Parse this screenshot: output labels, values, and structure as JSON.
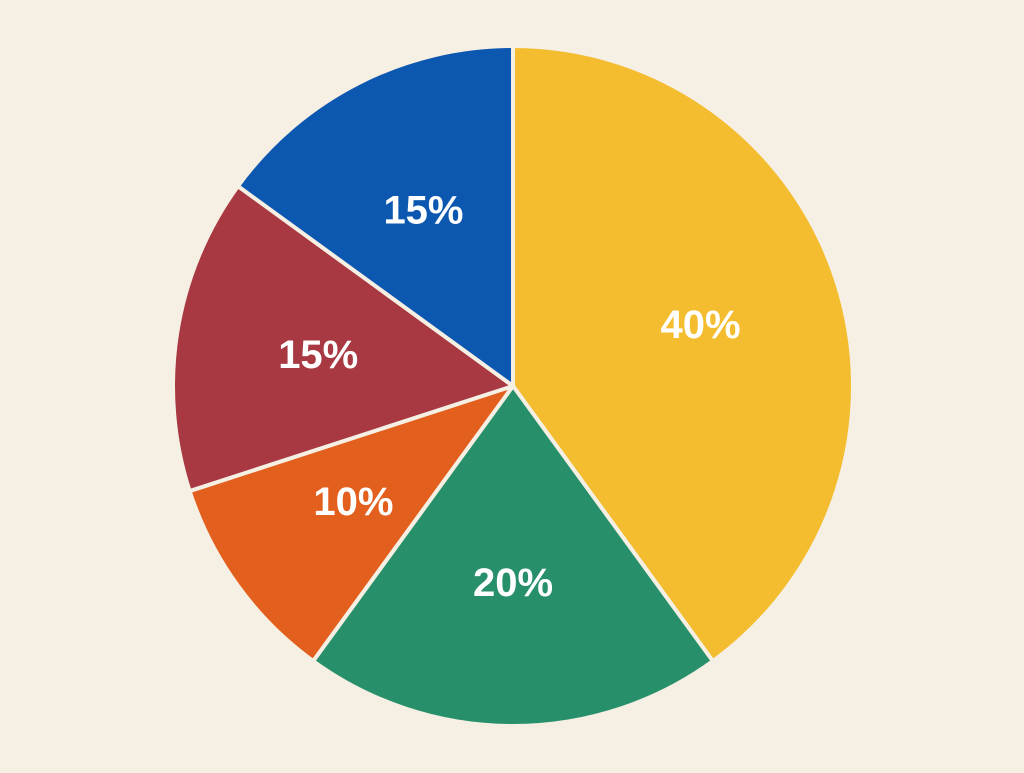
{
  "chart_data": {
    "type": "pie",
    "slices": [
      {
        "label": "40%",
        "value": 40,
        "color": "#f4bd2f"
      },
      {
        "label": "20%",
        "value": 20,
        "color": "#27906a"
      },
      {
        "label": "10%",
        "value": 10,
        "color": "#e35f1d"
      },
      {
        "label": "15%",
        "value": 15,
        "color": "#a83841"
      },
      {
        "label": "15%",
        "value": 15,
        "color": "#0c57b0"
      }
    ],
    "background": "#f6efe3",
    "separator_color": "#f6efe3"
  }
}
